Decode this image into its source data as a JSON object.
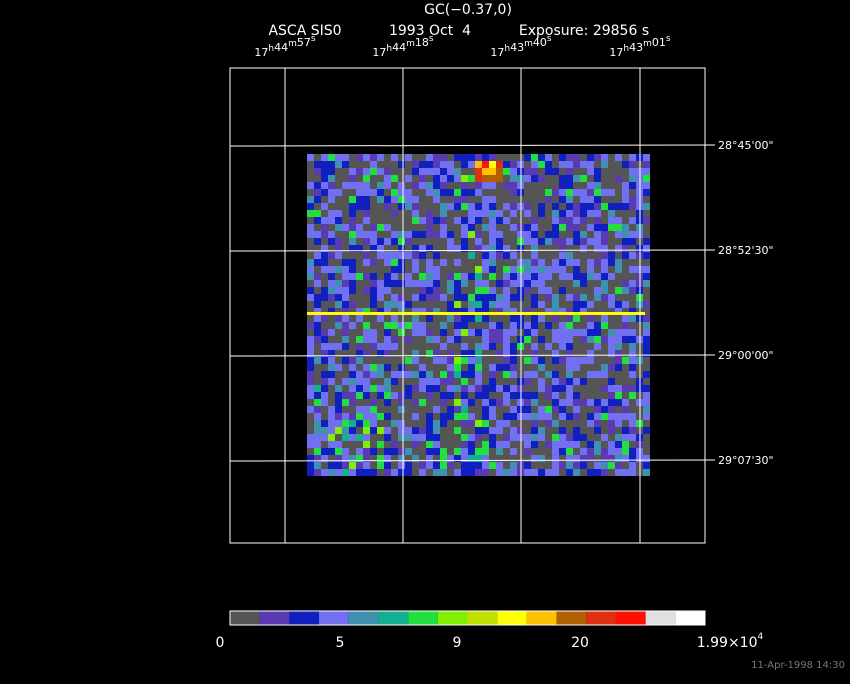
{
  "header": {
    "title": "GC(−0.37,0)",
    "instrument": "ASCA SIS0",
    "date": "1993 Oct  4",
    "exposure": "Exposure: 29856 s"
  },
  "ra_units": [
    "h",
    "m",
    "s"
  ],
  "ra_labels": [
    {
      "h": "17",
      "m": "44",
      "s": "57"
    },
    {
      "h": "17",
      "m": "44",
      "s": "18"
    },
    {
      "h": "17",
      "m": "43",
      "s": "40"
    },
    {
      "h": "17",
      "m": "43",
      "s": "01"
    }
  ],
  "dec_labels": [
    "28°45'00\"",
    "28°52'30\"",
    "29°00'00\"",
    "29°07'30\""
  ],
  "colorbar": {
    "colors": [
      "#555555",
      "#5a3ab0",
      "#1020c0",
      "#7070f0",
      "#4090b0",
      "#10b090",
      "#20e040",
      "#80f000",
      "#c0e000",
      "#ffff00",
      "#ffc000",
      "#b06000",
      "#e03010",
      "#ff1000",
      "#e0e0e0",
      "#ffffff"
    ],
    "labels": [
      "0",
      "5",
      "9",
      "20"
    ],
    "max_label": {
      "mantissa": "1.99×10",
      "exponent": "4"
    }
  },
  "footer": "11-Apr-1998 14:30"
}
